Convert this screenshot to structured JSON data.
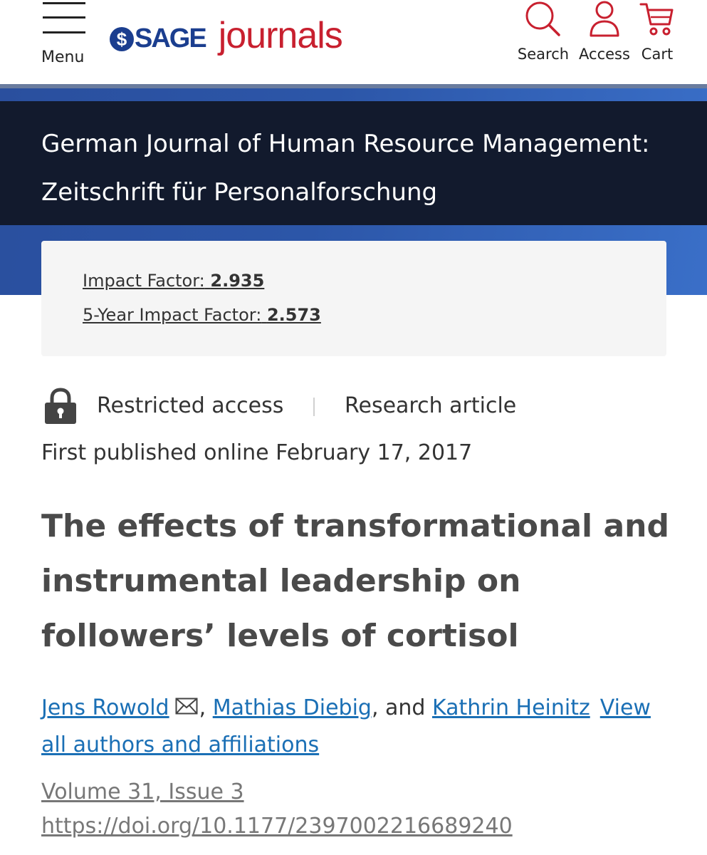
{
  "header": {
    "menu_label": "Menu",
    "logo_sage": "SAGE",
    "logo_journals": "journals",
    "search_label": "Search",
    "access_label": "Access",
    "cart_label": "Cart"
  },
  "journal": {
    "title": "German Journal of Human Resource Management: Zeitschrift für Personalforschung"
  },
  "impact": {
    "impact_factor_label": "Impact Factor:",
    "impact_factor_value": "2.935",
    "five_year_label": "5-Year Impact Factor:",
    "five_year_value": "2.573"
  },
  "article": {
    "access": "Restricted access",
    "type": "Research article",
    "published": "First published online February 17, 2017",
    "title": "The effects of transformational and instrumental leadership on followers’ levels of cortisol",
    "authors": [
      "Jens Rowold",
      "Mathias Diebig",
      "Kathrin Heinitz"
    ],
    "author_sep": ",",
    "author_and": ", and",
    "view_all": "View all authors and affiliations",
    "volume": "Volume 31, Issue 3",
    "doi": "https://doi.org/10.1177/2397002216689240"
  },
  "colors": {
    "sage_blue": "#1b3e8f",
    "journals_red": "#c8202f",
    "banner_navy": "#121a2d",
    "link_blue": "#1a6fb5"
  },
  "icons": [
    "menu-icon",
    "search-icon",
    "user-icon",
    "cart-icon",
    "lock-icon",
    "mail-icon"
  ]
}
